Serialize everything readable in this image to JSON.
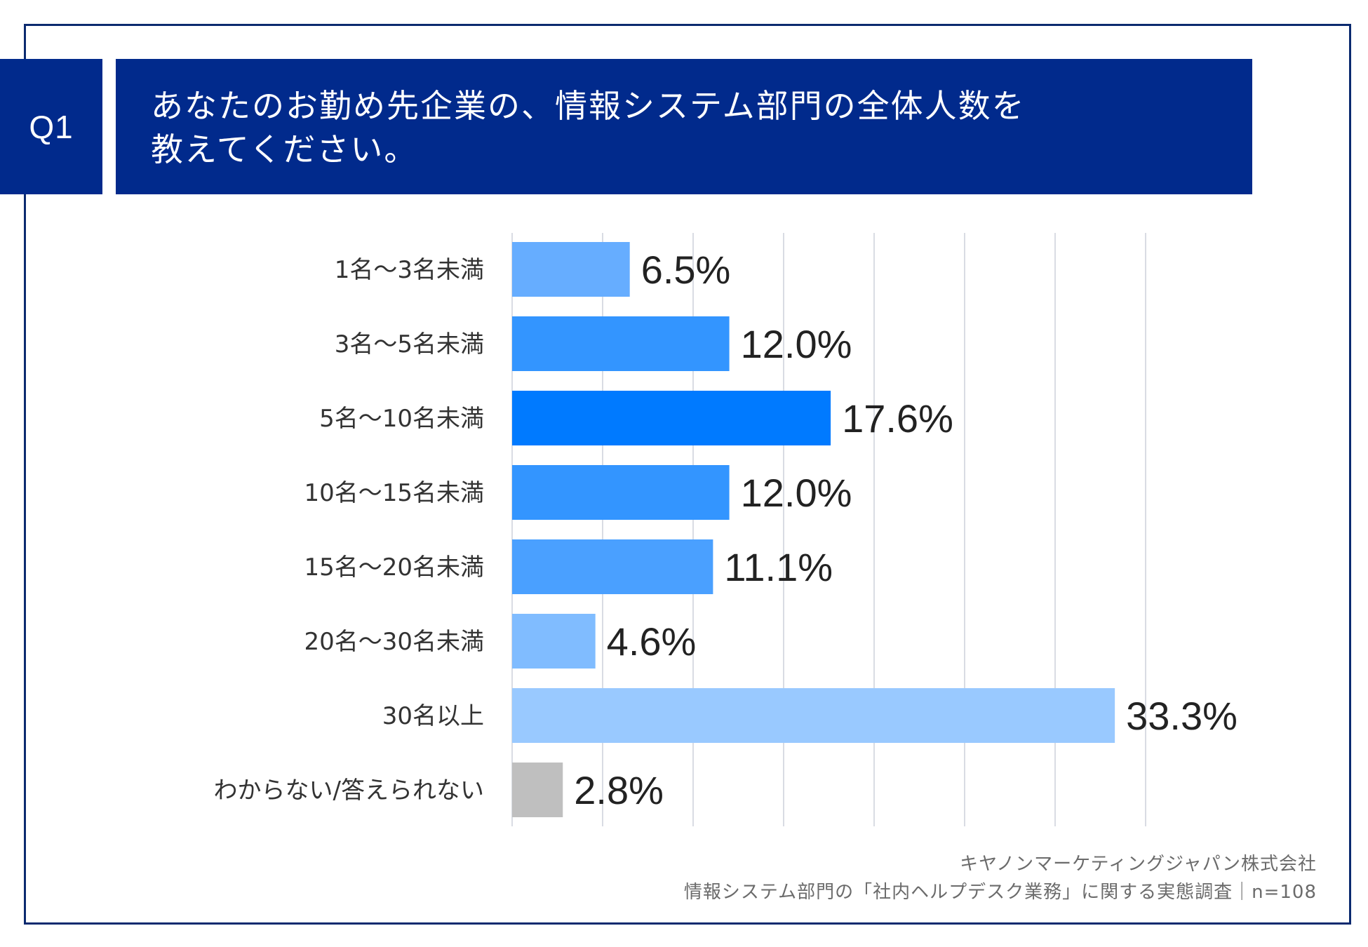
{
  "question": {
    "badge": "Q1",
    "line1": "あなたのお勤め先企業の、情報システム部門の全体人数を",
    "line2": "教えてください。"
  },
  "footer": {
    "company": "キヤノンマーケティングジャパン株式会社",
    "survey": "情報システム部門の「社内ヘルプデスク業務」に関する実態調査｜n=108"
  },
  "colors": {
    "banner": "#012a8c",
    "frame": "#0b2a6f",
    "grid": "#d9dce3",
    "gray": "#bfbfbf"
  },
  "chart_data": {
    "type": "bar",
    "orientation": "horizontal",
    "title": "",
    "xlabel": "",
    "ylabel": "",
    "xlim": [
      0,
      35
    ],
    "grid": true,
    "categories": [
      "1名〜3名未満",
      "3名〜5名未満",
      "5名〜10名未満",
      "10名〜15名未満",
      "15名〜20名未満",
      "20名〜30名未満",
      "30名以上",
      "わからない/答えられない"
    ],
    "values": [
      6.5,
      12.0,
      17.6,
      12.0,
      11.1,
      4.6,
      33.3,
      2.8
    ],
    "value_labels": [
      "6.5%",
      "12.0%",
      "17.6%",
      "12.0%",
      "11.1%",
      "4.6%",
      "33.3%",
      "2.8%"
    ],
    "bar_colors": [
      "#66adff",
      "#3395ff",
      "#007aff",
      "#3395ff",
      "#4aa0ff",
      "#80bcff",
      "#99c9ff",
      "#bfbfbf"
    ]
  }
}
